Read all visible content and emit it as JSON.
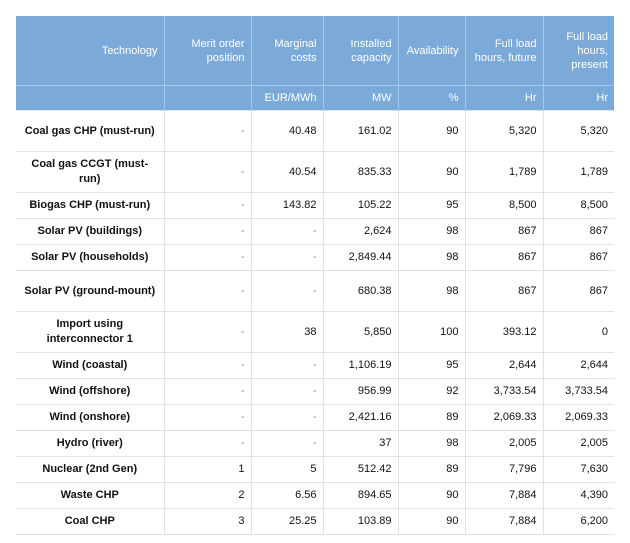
{
  "headers": [
    "Technology",
    "Merit order position",
    "Marginal costs",
    "Installed capacity",
    "Availability",
    "Full load hours, future",
    "Full load hours, present"
  ],
  "units": [
    "",
    "",
    "EUR/MWh",
    "MW",
    "%",
    "Hr",
    "Hr"
  ],
  "rows": [
    [
      "Coal gas CHP (must-run)",
      "-",
      "40.48",
      "161.02",
      "90",
      "5,320",
      "5,320"
    ],
    [
      "Coal gas CCGT (must-run)",
      "-",
      "40.54",
      "835.33",
      "90",
      "1,789",
      "1,789"
    ],
    [
      "Biogas CHP (must-run)",
      "-",
      "143.82",
      "105.22",
      "95",
      "8,500",
      "8,500"
    ],
    [
      "Solar PV (buildings)",
      "-",
      "-",
      "2,624",
      "98",
      "867",
      "867"
    ],
    [
      "Solar PV (households)",
      "-",
      "-",
      "2,849.44",
      "98",
      "867",
      "867"
    ],
    [
      "Solar PV (ground-mount)",
      "-",
      "-",
      "680.38",
      "98",
      "867",
      "867"
    ],
    [
      "Import using interconnector 1",
      "-",
      "38",
      "5,850",
      "100",
      "393.12",
      "0"
    ],
    [
      "Wind (coastal)",
      "-",
      "-",
      "1,106.19",
      "95",
      "2,644",
      "2,644"
    ],
    [
      "Wind (offshore)",
      "-",
      "-",
      "956.99",
      "92",
      "3,733.54",
      "3,733.54"
    ],
    [
      "Wind (onshore)",
      "-",
      "-",
      "2,421.16",
      "89",
      "2,069.33",
      "2,069.33"
    ],
    [
      "Hydro (river)",
      "-",
      "-",
      "37",
      "98",
      "2,005",
      "2,005"
    ],
    [
      "Nuclear (2nd Gen)",
      "1",
      "5",
      "512.42",
      "89",
      "7,796",
      "7,630"
    ],
    [
      "Waste CHP",
      "2",
      "6.56",
      "894.65",
      "90",
      "7,884",
      "4,390"
    ],
    [
      "Coal CHP",
      "3",
      "25.25",
      "103.89",
      "90",
      "7,884",
      "6,200"
    ]
  ]
}
